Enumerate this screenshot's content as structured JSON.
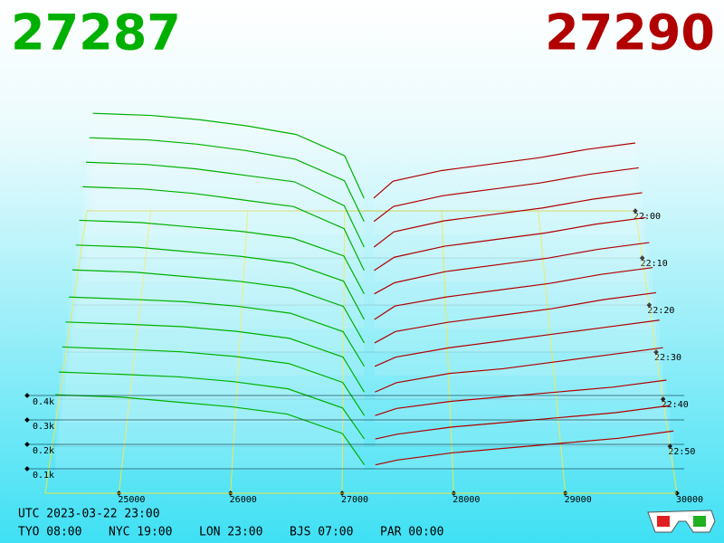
{
  "header": {
    "bid": "27287",
    "ask": "27290"
  },
  "chart_data": {
    "type": "depth3d",
    "bid_color": "#00b000",
    "ask_color": "#b00000",
    "grid_color": "#e8e840",
    "xlim": [
      24340,
      30000
    ],
    "xticks": [
      25000,
      26000,
      27000,
      28000,
      29000,
      30000
    ],
    "zticks": [
      {
        "value": 0.1,
        "label": "0.1k"
      },
      {
        "value": 0.2,
        "label": "0.2k"
      },
      {
        "value": 0.3,
        "label": "0.3k"
      },
      {
        "value": 0.4,
        "label": "0.4k"
      }
    ],
    "tlim": [
      0,
      60
    ],
    "tticks": [
      {
        "value": 0,
        "label": "22:00"
      },
      {
        "value": 10,
        "label": "22:10"
      },
      {
        "value": 20,
        "label": "22:20"
      },
      {
        "value": 30,
        "label": "22:30"
      },
      {
        "value": 40,
        "label": "22:40"
      },
      {
        "value": 50,
        "label": "22:50"
      }
    ],
    "bid_prices": [
      24400,
      25000,
      25500,
      26000,
      26500,
      27000,
      27200
    ],
    "ask_prices": [
      27300,
      27500,
      28000,
      28500,
      29000,
      29500,
      30000
    ],
    "snapshots": [
      {
        "t": 0,
        "bids": [
          0.46,
          0.45,
          0.43,
          0.4,
          0.36,
          0.26,
          0.06
        ],
        "asks": [
          0.06,
          0.14,
          0.19,
          0.22,
          0.25,
          0.29,
          0.32
        ]
      },
      {
        "t": 5,
        "bids": [
          0.45,
          0.44,
          0.42,
          0.39,
          0.35,
          0.25,
          0.06
        ],
        "asks": [
          0.06,
          0.13,
          0.18,
          0.21,
          0.24,
          0.28,
          0.31
        ]
      },
      {
        "t": 10,
        "bids": [
          0.44,
          0.43,
          0.41,
          0.38,
          0.35,
          0.24,
          0.05
        ],
        "asks": [
          0.05,
          0.12,
          0.17,
          0.2,
          0.23,
          0.27,
          0.3
        ]
      },
      {
        "t": 15,
        "bids": [
          0.43,
          0.42,
          0.4,
          0.37,
          0.34,
          0.24,
          0.05
        ],
        "asks": [
          0.05,
          0.11,
          0.16,
          0.19,
          0.22,
          0.26,
          0.29
        ]
      },
      {
        "t": 20,
        "bids": [
          0.38,
          0.37,
          0.35,
          0.33,
          0.3,
          0.22,
          0.05
        ],
        "asks": [
          0.05,
          0.1,
          0.15,
          0.18,
          0.21,
          0.25,
          0.28
        ]
      },
      {
        "t": 25,
        "bids": [
          0.37,
          0.36,
          0.34,
          0.32,
          0.29,
          0.21,
          0.04
        ],
        "asks": [
          0.04,
          0.1,
          0.14,
          0.17,
          0.2,
          0.24,
          0.27
        ]
      },
      {
        "t": 30,
        "bids": [
          0.36,
          0.35,
          0.33,
          0.31,
          0.28,
          0.2,
          0.04
        ],
        "asks": [
          0.04,
          0.09,
          0.13,
          0.16,
          0.19,
          0.23,
          0.26
        ]
      },
      {
        "t": 35,
        "bids": [
          0.34,
          0.33,
          0.32,
          0.3,
          0.27,
          0.19,
          0.04
        ],
        "asks": [
          0.04,
          0.08,
          0.12,
          0.15,
          0.18,
          0.21,
          0.24
        ]
      },
      {
        "t": 40,
        "bids": [
          0.33,
          0.32,
          0.31,
          0.29,
          0.26,
          0.18,
          0.03
        ],
        "asks": [
          0.03,
          0.07,
          0.11,
          0.13,
          0.16,
          0.19,
          0.22
        ]
      },
      {
        "t": 45,
        "bids": [
          0.32,
          0.31,
          0.3,
          0.28,
          0.25,
          0.17,
          0.03
        ],
        "asks": [
          0.03,
          0.06,
          0.09,
          0.11,
          0.13,
          0.15,
          0.18
        ]
      },
      {
        "t": 50,
        "bids": [
          0.31,
          0.3,
          0.29,
          0.27,
          0.24,
          0.16,
          0.03
        ],
        "asks": [
          0.03,
          0.05,
          0.08,
          0.1,
          0.12,
          0.14,
          0.17
        ]
      },
      {
        "t": 55,
        "bids": [
          0.31,
          0.3,
          0.28,
          0.26,
          0.23,
          0.15,
          0.02
        ],
        "asks": [
          0.02,
          0.04,
          0.07,
          0.09,
          0.11,
          0.13,
          0.16
        ]
      }
    ]
  },
  "footer": {
    "utc": "UTC 2023-03-22 23:00",
    "cities": [
      "TYO 08:00",
      "NYC 19:00",
      "LON 23:00",
      "BJS 07:00",
      "PAR 00:00"
    ]
  }
}
